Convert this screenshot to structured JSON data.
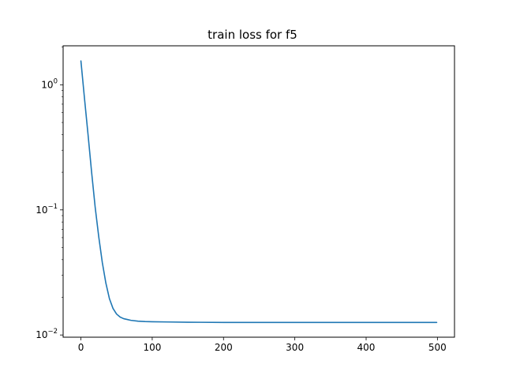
{
  "chart_data": {
    "type": "line",
    "title": "train loss for f5",
    "xlabel": "",
    "ylabel": "",
    "xlim": [
      -24.95,
      523.95
    ],
    "ylim": [
      0.0096,
      2.05
    ],
    "yscale": "log",
    "grid": false,
    "xticks": [
      0,
      100,
      200,
      300,
      400,
      500
    ],
    "xtick_labels": [
      "0",
      "100",
      "200",
      "300",
      "400",
      "500"
    ],
    "yticks": [
      {
        "value": 1,
        "base": "10",
        "exp": "0"
      },
      {
        "value": 0.1,
        "base": "10",
        "exp": "−1"
      },
      {
        "value": 0.01,
        "base": "10",
        "exp": "−2"
      }
    ],
    "series": [
      {
        "name": "",
        "color": "#1f77b4",
        "x": [
          0,
          5,
          10,
          15,
          20,
          25,
          30,
          35,
          40,
          45,
          50,
          55,
          60,
          65,
          70,
          80,
          90,
          100,
          125,
          150,
          200,
          250,
          300,
          350,
          400,
          450,
          499
        ],
        "y": [
          1.55,
          0.78,
          0.4,
          0.2,
          0.105,
          0.061,
          0.038,
          0.026,
          0.0195,
          0.0163,
          0.0147,
          0.0139,
          0.0135,
          0.0133,
          0.0131,
          0.0129,
          0.0128,
          0.01275,
          0.0127,
          0.01265,
          0.0126,
          0.0126,
          0.0126,
          0.0126,
          0.0126,
          0.0126,
          0.0126
        ]
      }
    ]
  }
}
